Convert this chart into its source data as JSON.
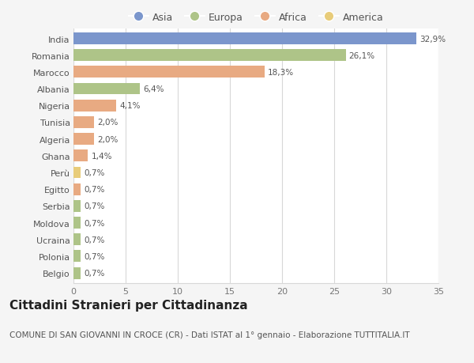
{
  "countries": [
    "India",
    "Romania",
    "Marocco",
    "Albania",
    "Nigeria",
    "Tunisia",
    "Algeria",
    "Ghana",
    "Perù",
    "Egitto",
    "Serbia",
    "Moldova",
    "Ucraina",
    "Polonia",
    "Belgio"
  ],
  "values": [
    32.9,
    26.1,
    18.3,
    6.4,
    4.1,
    2.0,
    2.0,
    1.4,
    0.7,
    0.7,
    0.7,
    0.7,
    0.7,
    0.7,
    0.7
  ],
  "labels": [
    "32,9%",
    "26,1%",
    "18,3%",
    "6,4%",
    "4,1%",
    "2,0%",
    "2,0%",
    "1,4%",
    "0,7%",
    "0,7%",
    "0,7%",
    "0,7%",
    "0,7%",
    "0,7%",
    "0,7%"
  ],
  "continents": [
    "Asia",
    "Europa",
    "Africa",
    "Europa",
    "Africa",
    "Africa",
    "Africa",
    "Africa",
    "America",
    "Africa",
    "Europa",
    "Europa",
    "Europa",
    "Europa",
    "Europa"
  ],
  "colors": {
    "Asia": "#7b96cc",
    "Europa": "#aec488",
    "Africa": "#e8aa82",
    "America": "#e8cc7a"
  },
  "legend_labels": [
    "Asia",
    "Europa",
    "Africa",
    "America"
  ],
  "legend_colors": [
    "#7b96cc",
    "#aec488",
    "#e8aa82",
    "#e8cc7a"
  ],
  "xlim": [
    0,
    35
  ],
  "xticks": [
    0,
    5,
    10,
    15,
    20,
    25,
    30,
    35
  ],
  "title": "Cittadini Stranieri per Cittadinanza",
  "subtitle": "COMUNE DI SAN GIOVANNI IN CROCE (CR) - Dati ISTAT al 1° gennaio - Elaborazione TUTTITALIA.IT",
  "background_color": "#f5f5f5",
  "bar_background": "#ffffff",
  "grid_color": "#d8d8d8",
  "label_fontsize": 7.5,
  "ytick_fontsize": 8,
  "xtick_fontsize": 8,
  "title_fontsize": 11,
  "subtitle_fontsize": 7.5,
  "bar_height": 0.7
}
